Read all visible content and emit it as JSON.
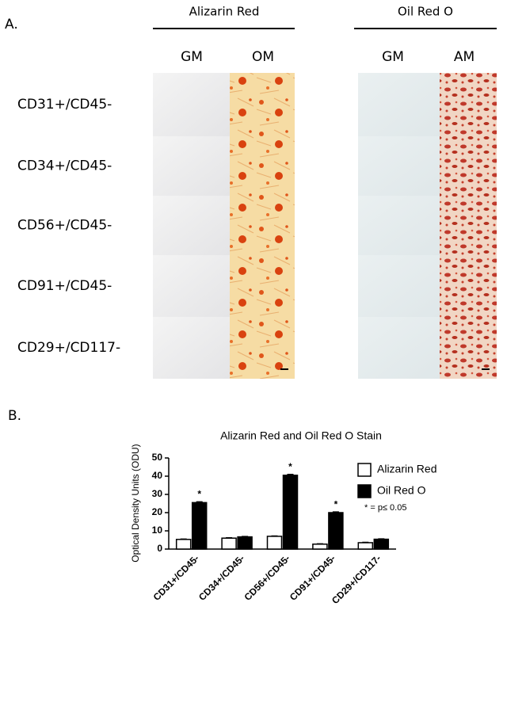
{
  "panel_a": {
    "label": "A.",
    "groups": [
      {
        "title": "Alizarin Red",
        "columns": [
          "GM",
          "OM"
        ]
      },
      {
        "title": "Oil Red O",
        "columns": [
          "GM",
          "AM"
        ]
      }
    ],
    "rows": [
      "CD31+/CD45-",
      "CD34+/CD45-",
      "CD56+/CD45-",
      "CD91+/CD45-",
      "CD29+/CD117-"
    ]
  },
  "panel_b_label": "B.",
  "chart_data": {
    "type": "bar",
    "title": "Alizarin Red and Oil Red O Stain",
    "y_label": "Optical Density Units (ODU)",
    "categories": [
      "CD31+/CD45-",
      "CD34+/CD45-",
      "CD56+/CD45-",
      "CD91+/CD45-",
      "CD29+/CD117-"
    ],
    "series": [
      {
        "name": "Alizarin Red",
        "color": "#ffffff",
        "values": [
          5.3,
          6,
          7,
          2.7,
          3.5
        ],
        "errors": [
          0.2,
          0.2,
          0.2,
          0.2,
          0.2
        ]
      },
      {
        "name": "Oil Red O",
        "color": "#000000",
        "values": [
          25.5,
          6.7,
          40.5,
          20,
          5.4
        ],
        "errors": [
          0.4,
          0.2,
          0.5,
          0.4,
          0.2
        ],
        "significance": [
          "*",
          null,
          "*",
          "*",
          null
        ]
      }
    ],
    "note": "* = p≤ 0.05",
    "ylim": [
      0,
      50
    ],
    "yticks": [
      0,
      10,
      20,
      30,
      40,
      50
    ]
  }
}
